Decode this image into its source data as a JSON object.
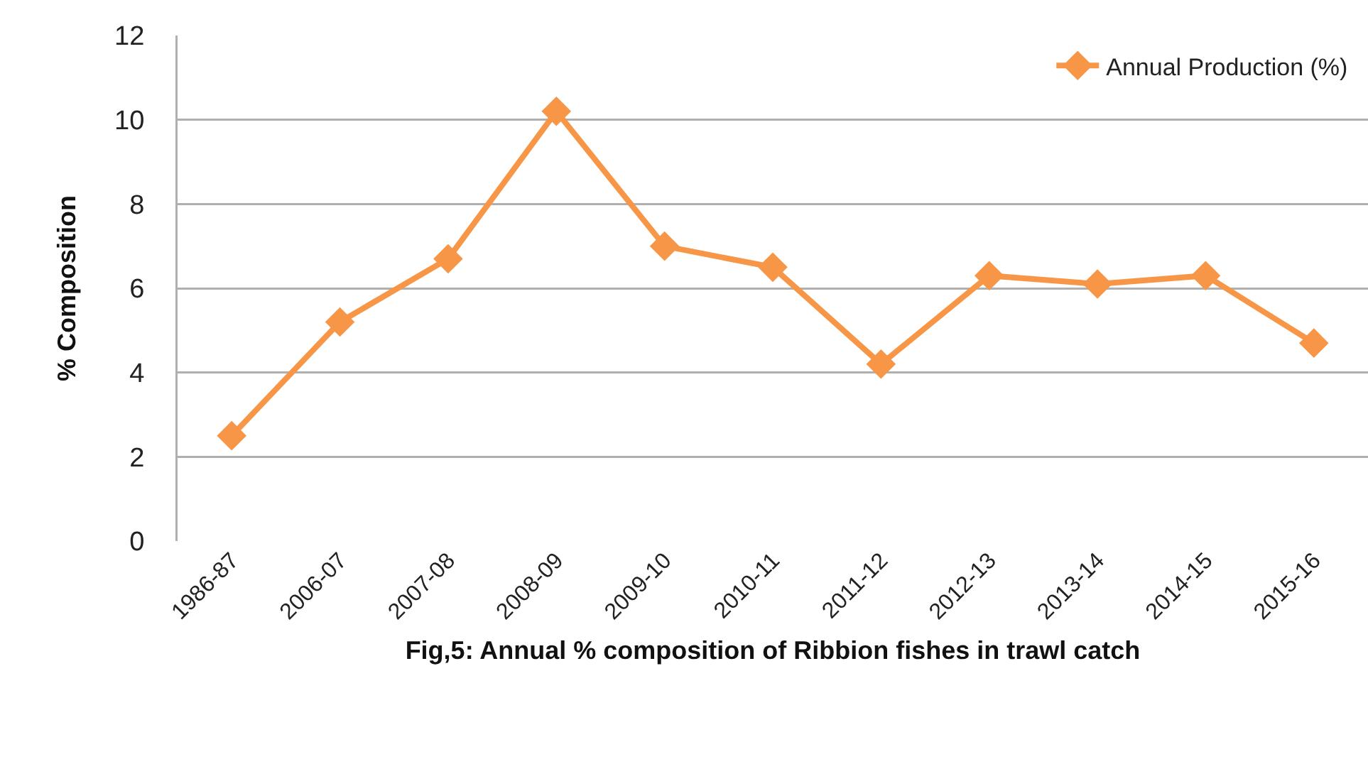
{
  "chart_data": {
    "type": "line",
    "xlabel": "Fig,5: Annual % composition of Ribbion fishes in trawl catch",
    "ylabel": "% Composition",
    "categories": [
      "1986-87",
      "2006-07",
      "2007-08",
      "2008-09",
      "2009-10",
      "2010-11",
      "2011-12",
      "2012-13",
      "2013-14",
      "2014-15",
      "2015-16"
    ],
    "series": [
      {
        "name": "Annual Production (%)",
        "color": "#f79646",
        "values": [
          2.5,
          5.2,
          6.7,
          10.2,
          7.0,
          6.5,
          4.2,
          6.3,
          6.1,
          6.3,
          4.7
        ]
      }
    ],
    "ylim": [
      0,
      12
    ],
    "yticks": [
      0,
      2,
      4,
      6,
      8,
      10,
      12
    ],
    "grid": "y",
    "legend": "top right",
    "marker": "diamond",
    "line_style": "solid"
  }
}
